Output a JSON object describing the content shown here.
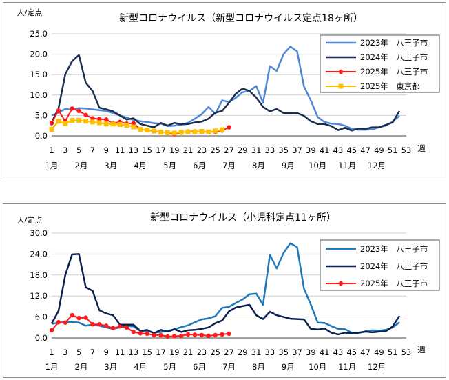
{
  "chart_data": [
    {
      "type": "line",
      "title": "新型コロナウイルス（新型コロナウイルス定点18ヶ所）",
      "ylabel": "人/定点",
      "xlabel": "週",
      "ylim": [
        0,
        25
      ],
      "yticks": [
        "0.0",
        "5.0",
        "10.0",
        "15.0",
        "20.0",
        "25.0"
      ],
      "x_ticks": [
        "1",
        "3",
        "5",
        "7",
        "9",
        "11",
        "13",
        "15",
        "17",
        "19",
        "21",
        "23",
        "25",
        "27",
        "29",
        "31",
        "33",
        "35",
        "37",
        "39",
        "41",
        "43",
        "45",
        "47",
        "49",
        "51",
        "53"
      ],
      "months": [
        "1月",
        "2月",
        "3月",
        "4月",
        "5月",
        "6月",
        "7月",
        "8月",
        "9月",
        "10月",
        "11月",
        "12月"
      ],
      "grid": true,
      "legend": "top-right",
      "series": [
        {
          "name": "2023年　八王子市",
          "color": "#4f86d6",
          "marker": "none",
          "values": [
            5.0,
            5.7,
            6.6,
            6.4,
            6.8,
            6.7,
            6.5,
            6.3,
            6.1,
            5.6,
            5.0,
            4.5,
            3.9,
            3.6,
            3.4,
            3.1,
            3.0,
            2.4,
            2.5,
            2.8,
            3.2,
            4.2,
            5.3,
            7.1,
            5.4,
            8.7,
            8.3,
            9.3,
            10.7,
            11.0,
            12.2,
            8.1,
            17.1,
            15.9,
            20.0,
            21.9,
            20.7,
            12.1,
            8.7,
            4.6,
            3.4,
            3.0,
            2.9,
            2.5,
            1.7,
            1.5,
            1.5,
            1.6,
            2.1,
            2.5,
            3.5,
            4.9
          ]
        },
        {
          "name": "2024年　八王子市",
          "color": "#1b2e4f",
          "marker": "none",
          "values": [
            3.3,
            6.7,
            15.1,
            18.3,
            19.8,
            13.0,
            11.0,
            6.9,
            6.5,
            6.0,
            5.0,
            4.0,
            4.3,
            2.9,
            2.5,
            2.1,
            3.2,
            2.5,
            3.2,
            2.8,
            2.9,
            3.3,
            3.5,
            4.2,
            5.7,
            6.1,
            8.1,
            10.3,
            11.6,
            11.0,
            9.4,
            7.1,
            6.0,
            6.6,
            5.6,
            5.6,
            5.6,
            4.9,
            3.6,
            2.9,
            2.9,
            2.4,
            1.4,
            2.0,
            1.3,
            1.8,
            1.7,
            2.1,
            2.1,
            2.7,
            3.3,
            6.1
          ]
        },
        {
          "name": "2025年　八王子市",
          "color": "#ff1a1a",
          "marker": "circle",
          "values": [
            3.1,
            6.2,
            3.6,
            6.7,
            6.1,
            5.1,
            4.3,
            4.1,
            4.0,
            3.1,
            3.4,
            3.0,
            3.1,
            1.6,
            1.4,
            1.1,
            1.0,
            0.7,
            0.4,
            0.8,
            1.1,
            1.1,
            1.0,
            1.0,
            1.0,
            1.3,
            2.1
          ]
        },
        {
          "name": "2025年　東京都",
          "color": "#ffbf00",
          "marker": "square",
          "values": [
            1.6,
            3.6,
            3.0,
            3.8,
            3.8,
            3.6,
            3.4,
            3.2,
            2.9,
            2.9,
            2.8,
            2.6,
            2.2,
            1.6,
            1.4,
            1.2,
            0.9,
            0.8,
            0.7,
            0.9,
            1.0,
            1.0,
            1.1,
            1.0,
            1.2,
            1.5
          ]
        }
      ]
    },
    {
      "type": "line",
      "title": "新型コロナウイルス（小児科定点11ヶ所）",
      "ylabel": "人/定点",
      "xlabel": "週",
      "ylim": [
        0,
        30
      ],
      "yticks": [
        "0.0",
        "6.0",
        "12.0",
        "18.0",
        "24.0",
        "30.0"
      ],
      "x_ticks": [
        "1",
        "3",
        "5",
        "7",
        "9",
        "11",
        "13",
        "15",
        "17",
        "19",
        "21",
        "23",
        "25",
        "27",
        "29",
        "31",
        "33",
        "35",
        "37",
        "39",
        "41",
        "43",
        "45",
        "47",
        "49",
        "51",
        "53"
      ],
      "months": [
        "1月",
        "2月",
        "3月",
        "4月",
        "5月",
        "6月",
        "7月",
        "8月",
        "9月",
        "10月",
        "11月",
        "12月"
      ],
      "grid": true,
      "legend": "top-right",
      "series": [
        {
          "name": "2023年　八王子市",
          "color": "#1f78b8",
          "marker": "none",
          "values": [
            4.0,
            4.4,
            4.5,
            4.6,
            4.4,
            3.5,
            3.8,
            3.5,
            3.0,
            2.6,
            3.0,
            3.4,
            3.3,
            2.0,
            2.0,
            1.5,
            1.7,
            2.0,
            2.5,
            3.1,
            3.6,
            4.5,
            5.3,
            5.6,
            6.2,
            8.6,
            8.9,
            10.0,
            11.0,
            12.5,
            12.7,
            9.5,
            23.8,
            19.9,
            24.3,
            27.1,
            26.0,
            14.1,
            9.6,
            4.4,
            4.3,
            3.4,
            2.6,
            2.5,
            1.5,
            1.4,
            1.9,
            2.2,
            2.1,
            2.3,
            3.0,
            4.5
          ]
        },
        {
          "name": "2024年　八王子市",
          "color": "#0b2150",
          "marker": "none",
          "values": [
            4.1,
            7.7,
            18.0,
            23.9,
            24.0,
            14.5,
            13.5,
            7.9,
            7.0,
            6.5,
            3.8,
            3.8,
            3.8,
            2.0,
            2.3,
            1.3,
            2.3,
            1.8,
            2.5,
            1.7,
            2.2,
            2.3,
            2.6,
            3.0,
            4.2,
            5.0,
            7.6,
            8.7,
            9.1,
            9.5,
            6.5,
            5.4,
            7.5,
            6.5,
            6.0,
            5.5,
            5.4,
            5.3,
            2.6,
            2.4,
            2.7,
            1.5,
            1.0,
            1.5,
            1.3,
            1.5,
            1.8,
            1.6,
            1.8,
            1.9,
            3.3,
            6.3
          ]
        },
        {
          "name": "2025年　八王子市",
          "color": "#ff1a1a",
          "marker": "circle",
          "values": [
            2.2,
            4.5,
            4.4,
            6.5,
            5.7,
            5.8,
            3.9,
            3.9,
            3.5,
            2.8,
            3.3,
            3.0,
            1.7,
            1.3,
            1.2,
            0.8,
            0.8,
            0.4,
            0.5,
            0.6,
            1.0,
            0.9,
            0.8,
            0.6,
            0.8,
            1.0,
            1.2
          ]
        }
      ]
    }
  ]
}
